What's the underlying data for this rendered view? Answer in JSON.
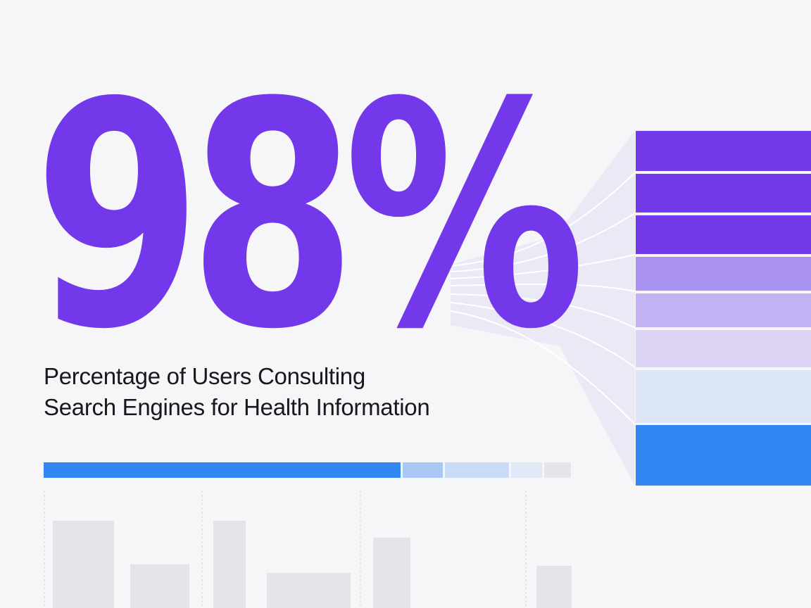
{
  "stat": {
    "value": "98%",
    "caption_line1": "Percentage of Users Consulting",
    "caption_line2": "Search Engines for Health Information"
  },
  "colors": {
    "accent_purple": "#7338ea",
    "accent_blue": "#3186f1",
    "text": "#17171c",
    "background": "#f6f6f8"
  }
}
